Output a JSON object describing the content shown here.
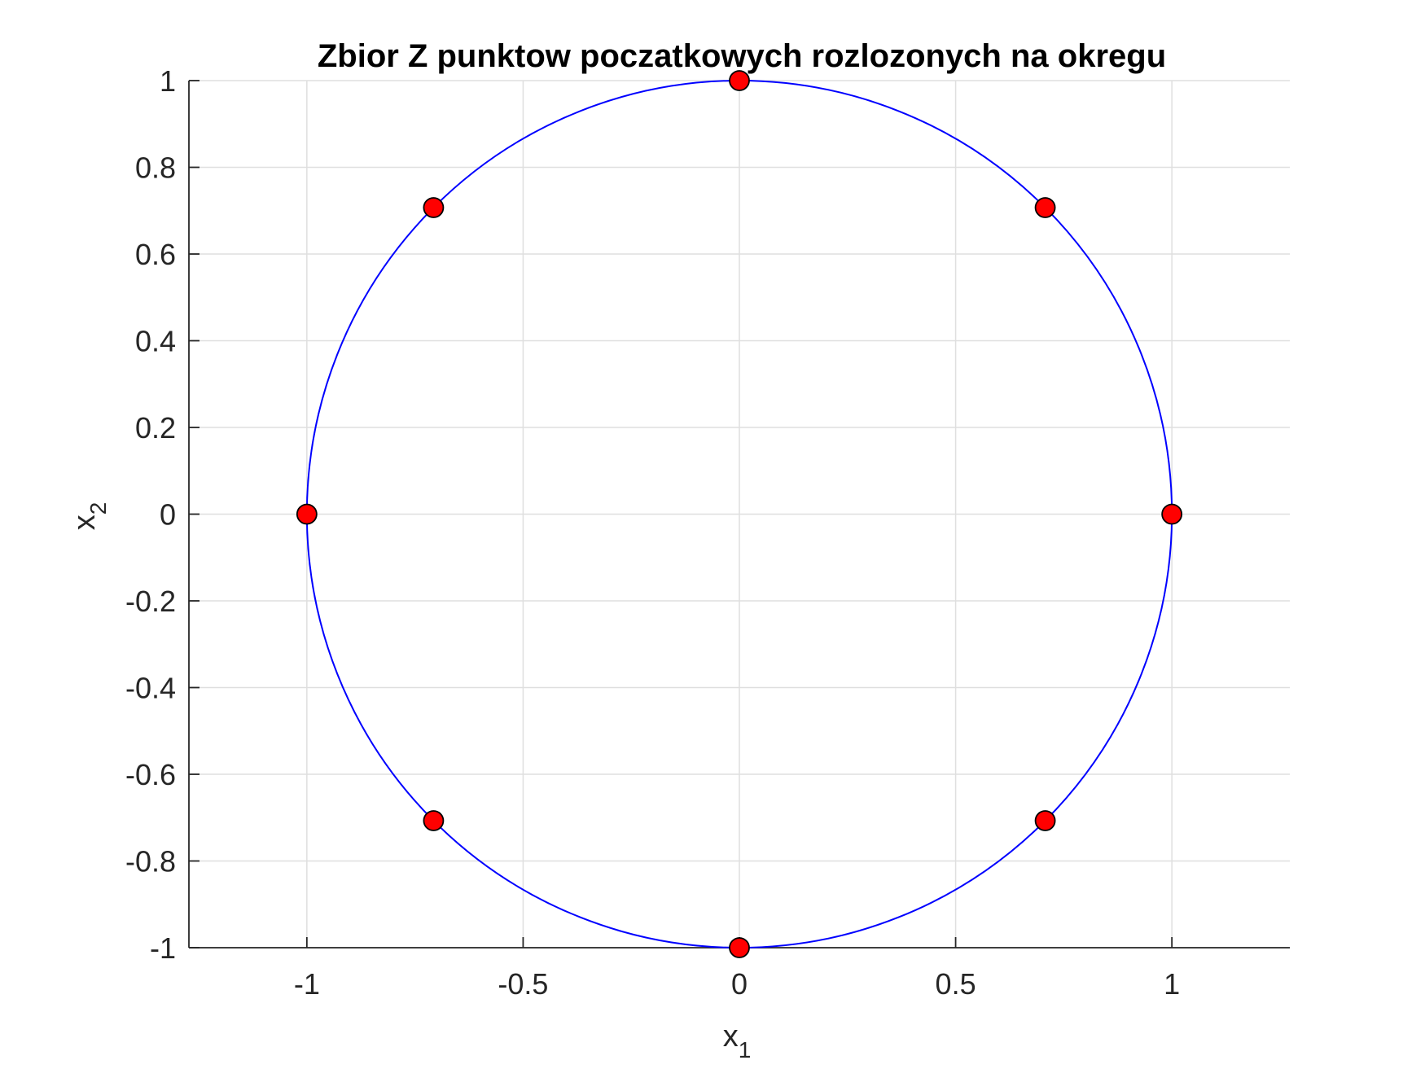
{
  "chart_data": {
    "type": "scatter",
    "title": "Zbior Z punktow poczatkowych rozlozonych na okregu",
    "xlabel": {
      "base": "x",
      "sub": "1"
    },
    "ylabel": {
      "base": "x",
      "sub": "2"
    },
    "xlim": [
      -1.2727,
      1.2727
    ],
    "ylim": [
      -1,
      1
    ],
    "xticks": [
      -1,
      -0.5,
      0,
      0.5,
      1
    ],
    "xtick_labels": [
      "-1",
      "-0.5",
      "0",
      "0.5",
      "1"
    ],
    "yticks": [
      -1,
      -0.8,
      -0.6,
      -0.4,
      -0.2,
      0,
      0.2,
      0.4,
      0.6,
      0.8,
      1
    ],
    "ytick_labels": [
      "-1",
      "-0.8",
      "-0.6",
      "-0.4",
      "-0.2",
      "0",
      "0.2",
      "0.4",
      "0.6",
      "0.8",
      "1"
    ],
    "grid": true,
    "circle": {
      "cx": 0,
      "cy": 0,
      "r": 1,
      "color": "#0000ff"
    },
    "points": {
      "x": [
        1,
        0.7071,
        0,
        -0.7071,
        -1,
        -0.7071,
        0,
        0.7071
      ],
      "y": [
        0,
        0.7071,
        1,
        0.7071,
        0,
        -0.7071,
        -1,
        -0.7071
      ],
      "fill": "#ff0000",
      "edge": "#000000"
    }
  }
}
